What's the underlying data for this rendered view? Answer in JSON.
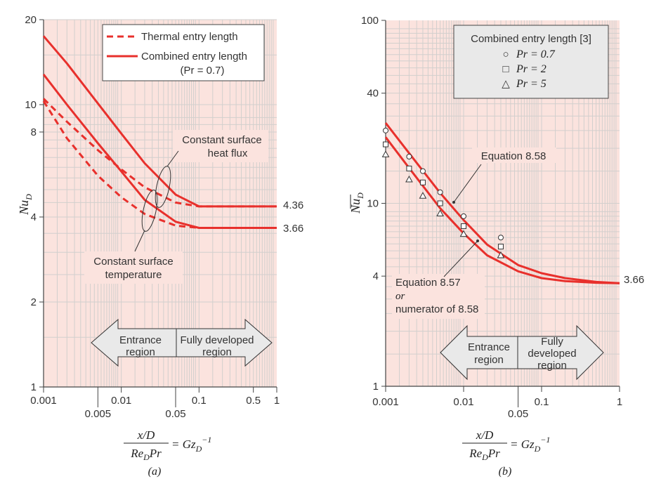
{
  "chart_data": [
    {
      "panel": "(a)",
      "type": "line",
      "xscale": "log",
      "yscale": "log",
      "xlim": [
        0.001,
        1
      ],
      "ylim": [
        1,
        20
      ],
      "x_ticks_top": [
        "0.001",
        "0.01",
        "0.1",
        "0.5",
        "1"
      ],
      "x_ticks_bottom": [
        "0.005",
        "0.05"
      ],
      "y_ticks": [
        "1",
        "2",
        "4",
        "8",
        "10",
        "20"
      ],
      "ylabel": "Nu",
      "ylabel_sub": "D",
      "xlabel_num": "x/D",
      "xlabel_den_a": "Re",
      "xlabel_den_sub": "D",
      "xlabel_den_b": "Pr",
      "xlabel_rhs": "= Gz",
      "xlabel_rhs_sub": "D",
      "xlabel_rhs_sup": "−1",
      "legend": {
        "position": "top-right",
        "thermal": "Thermal entry length",
        "combined": "Combined entry length",
        "combined_note": "(Pr = 0.7)"
      },
      "annotations": {
        "flux_1": "Constant surface",
        "flux_2": "heat flux",
        "temp_1": "Constant surface",
        "temp_2": "temperature",
        "value_flux": "4.36",
        "value_temp": "3.66"
      },
      "arrow": {
        "left_1": "Entrance",
        "left_2": "region",
        "right_1": "Fully developed",
        "right_2": "region"
      },
      "grid": true,
      "series": [
        {
          "kind": "thermal-flux",
          "style": "dashed",
          "x": [
            0.001,
            0.002,
            0.005,
            0.01,
            0.02,
            0.05,
            0.1,
            1
          ],
          "y": [
            10.5,
            8.7,
            6.9,
            5.9,
            5.1,
            4.5,
            4.36,
            4.36
          ]
        },
        {
          "kind": "thermal-temp",
          "style": "dashed",
          "x": [
            0.001,
            0.002,
            0.005,
            0.01,
            0.02,
            0.05,
            0.1,
            1
          ],
          "y": [
            10.3,
            7.6,
            5.6,
            4.7,
            4.1,
            3.73,
            3.66,
            3.66
          ]
        },
        {
          "kind": "combined-flux",
          "style": "solid",
          "x": [
            0.001,
            0.002,
            0.005,
            0.01,
            0.02,
            0.05,
            0.1,
            1
          ],
          "y": [
            17.5,
            14.0,
            10.1,
            7.9,
            6.2,
            4.8,
            4.36,
            4.36
          ]
        },
        {
          "kind": "combined-temp",
          "style": "solid",
          "x": [
            0.001,
            0.002,
            0.005,
            0.01,
            0.02,
            0.05,
            0.1,
            1
          ],
          "y": [
            12.8,
            10.0,
            7.3,
            5.8,
            4.6,
            3.85,
            3.66,
            3.66
          ]
        }
      ],
      "caption": "(a)"
    },
    {
      "panel": "(b)",
      "type": "line",
      "xscale": "log",
      "yscale": "log",
      "xlim": [
        0.001,
        1
      ],
      "ylim": [
        1,
        100
      ],
      "x_ticks_top": [
        "0.001",
        "0.01",
        "0.1",
        "1"
      ],
      "x_ticks_bottom": [
        "0.05"
      ],
      "y_ticks": [
        "1",
        "4",
        "10",
        "40",
        "100"
      ],
      "ylabel": "Nu",
      "ylabel_sub": "D",
      "ylabel_bar": true,
      "xlabel_num": "x/D",
      "xlabel_den_a": "Re",
      "xlabel_den_sub": "D",
      "xlabel_den_b": "Pr",
      "xlabel_rhs": "= Gz",
      "xlabel_rhs_sub": "D",
      "xlabel_rhs_sup": "−1",
      "legend": {
        "position": "top-right",
        "title": "Combined entry length [3]",
        "entries": [
          {
            "symbol": "○",
            "label": "Pr = 0.7"
          },
          {
            "symbol": "□",
            "label": "Pr = 2"
          },
          {
            "symbol": "△",
            "label": "Pr = 5"
          }
        ]
      },
      "annotations": {
        "eq858": "Equation 8.58",
        "eq857_1": "Equation 8.57",
        "eq857_2": "or",
        "eq857_3": "numerator of 8.58",
        "value_end": "3.66"
      },
      "arrow": {
        "left_1": "Entrance",
        "left_2": "region",
        "right_1": "Fully",
        "right_2": "developed",
        "right_3": "region"
      },
      "grid": true,
      "series": [
        {
          "kind": "eq858",
          "style": "solid",
          "x": [
            0.001,
            0.002,
            0.005,
            0.01,
            0.02,
            0.05,
            0.1,
            0.2,
            0.5,
            1
          ],
          "y": [
            27.5,
            18.8,
            11.4,
            8.1,
            5.95,
            4.6,
            4.15,
            3.9,
            3.72,
            3.66
          ]
        },
        {
          "kind": "eq857",
          "style": "solid",
          "x": [
            0.001,
            0.002,
            0.005,
            0.01,
            0.02,
            0.05,
            0.1,
            0.2,
            0.5,
            1
          ],
          "y": [
            23.0,
            15.6,
            9.4,
            6.85,
            5.2,
            4.25,
            3.9,
            3.76,
            3.68,
            3.66
          ]
        }
      ],
      "markers": [
        {
          "symbol": "circle",
          "x": [
            0.001,
            0.002,
            0.003,
            0.005,
            0.01,
            0.03
          ],
          "y": [
            25.0,
            18.0,
            15.0,
            11.5,
            8.5,
            6.5
          ]
        },
        {
          "symbol": "square",
          "x": [
            0.001,
            0.002,
            0.003,
            0.005,
            0.01,
            0.03
          ],
          "y": [
            21.0,
            15.5,
            13.0,
            10.0,
            7.5,
            5.8
          ]
        },
        {
          "symbol": "triangle",
          "x": [
            0.001,
            0.002,
            0.003,
            0.005,
            0.01,
            0.03
          ],
          "y": [
            18.5,
            13.5,
            11.0,
            8.8,
            6.8,
            5.2
          ]
        }
      ],
      "caption": "(b)"
    }
  ]
}
